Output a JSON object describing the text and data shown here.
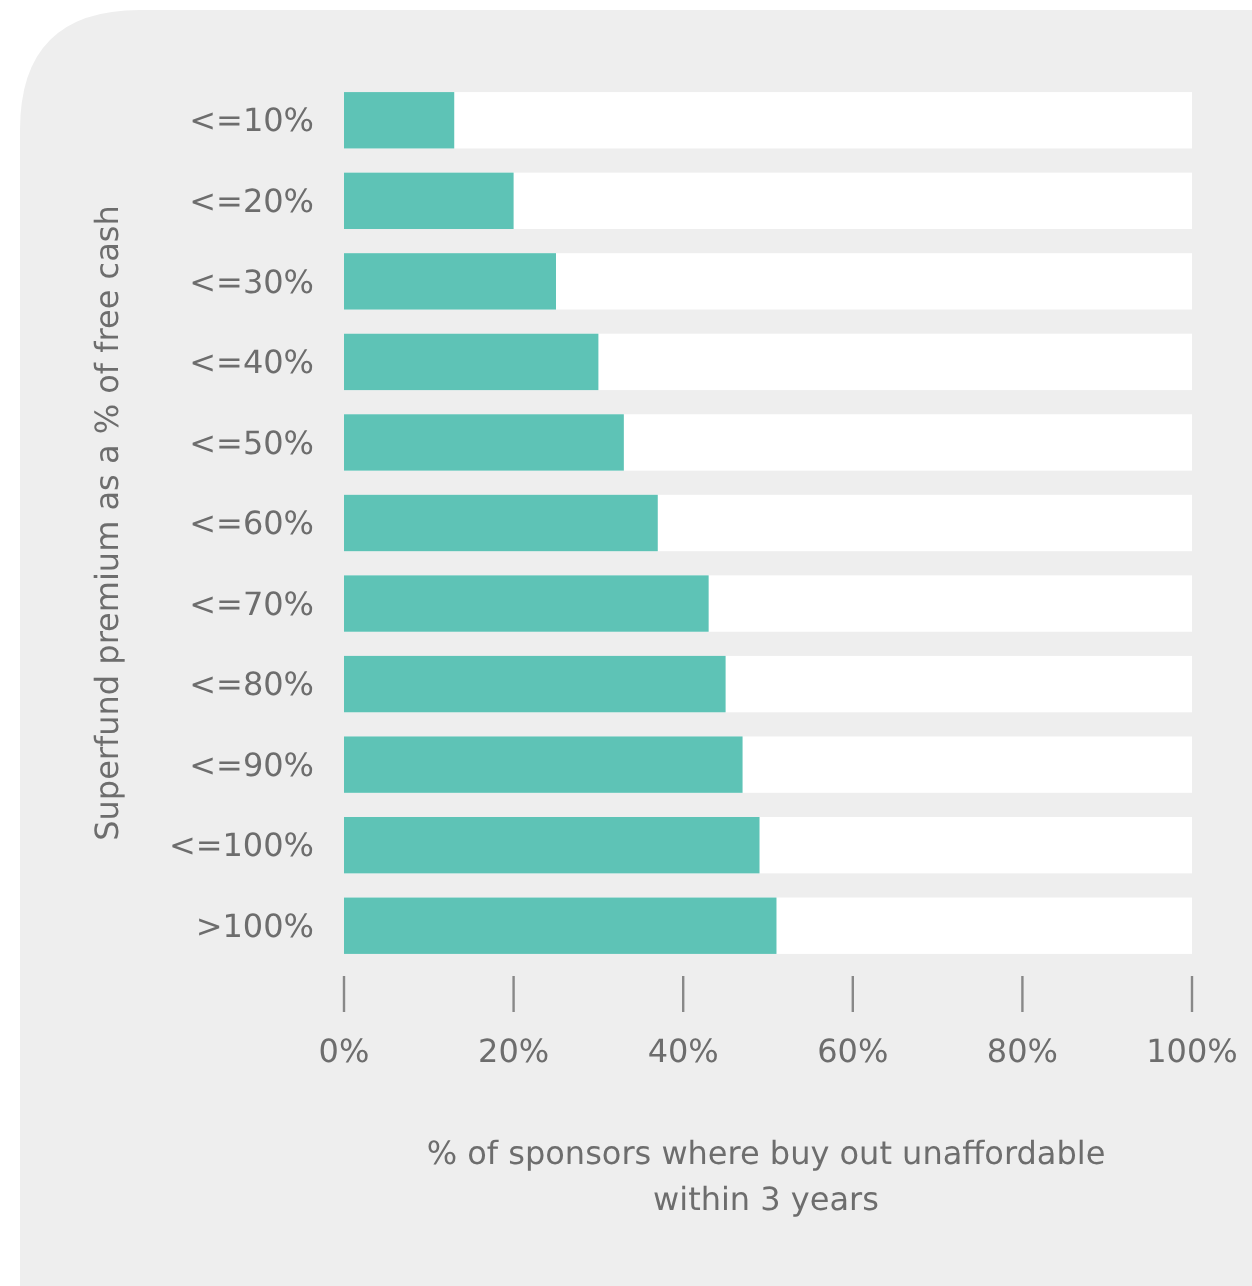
{
  "chart_data": {
    "type": "bar",
    "orientation": "horizontal",
    "categories": [
      "<=10%",
      "<=20%",
      "<=30%",
      "<=40%",
      "<=50%",
      "<=60%",
      "<=70%",
      "<=80%",
      "<=90%",
      "<=100%",
      ">100%"
    ],
    "values": [
      13,
      20,
      25,
      30,
      33,
      37,
      43,
      45,
      47,
      49,
      51
    ],
    "color": "#5ec3b6",
    "xlim": [
      0,
      100
    ],
    "xticks": [
      {
        "value": 0,
        "label": "0%"
      },
      {
        "value": 20,
        "label": "20%"
      },
      {
        "value": 40,
        "label": "40%"
      },
      {
        "value": 60,
        "label": "60%"
      },
      {
        "value": 80,
        "label": "80%"
      },
      {
        "value": 100,
        "label": "100%"
      }
    ],
    "xlabel": "% of sponsors where buy out unaffordable\nwithin 3 years",
    "ylabel": "Superfund premium as a % of free cash",
    "grid": false
  }
}
